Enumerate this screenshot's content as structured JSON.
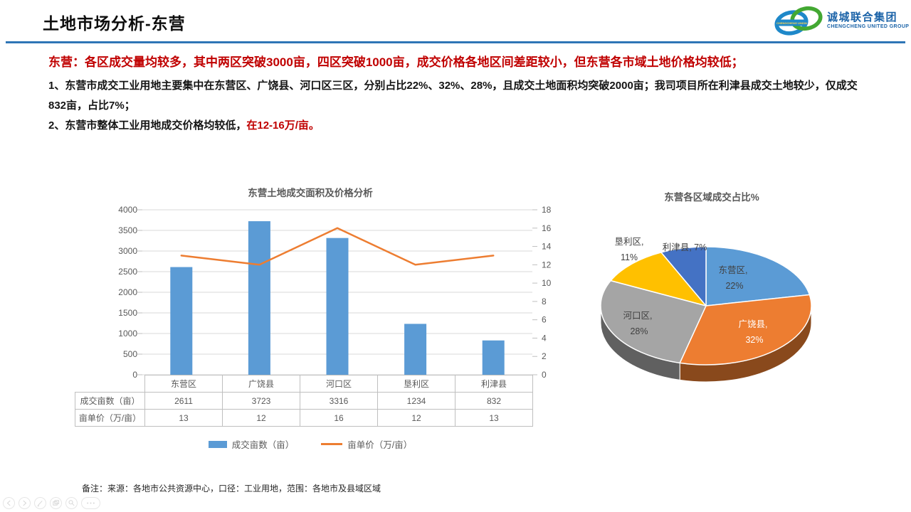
{
  "header": {
    "title": "土地市场分析-东营",
    "rule_color": "#2E75B6",
    "logo": {
      "cn": "诚城联合集团",
      "en": "CHENGCHENG UNITED GROUP",
      "badge": "CHENGCHENG UNION"
    }
  },
  "summary": {
    "headline": "东营：各区成交量均较多，其中两区突破3000亩，四区突破1000亩，成交价格各地区间差距较小，但东营各市域土地价格均较低；",
    "point1": "1、东营市成交工业用地主要集中在东营区、广饶县、河口区三区，分别占比22%、32%、28%，且成交土地面积均突破2000亩；我司项目所在利津县成交土地较少，仅成交832亩，占比7%；",
    "point2_text": "2、东营市整体工业用地成交价格均较低，",
    "point2_highlight": "在12-16万/亩。"
  },
  "chart_data": [
    {
      "type": "bar+line",
      "title": "东营土地成交面积及价格分析",
      "categories": [
        "东营区",
        "广饶县",
        "河口区",
        "垦利区",
        "利津县"
      ],
      "series": [
        {
          "name": "成交亩数（亩）",
          "type": "bar",
          "axis": "left",
          "color": "#5B9BD5",
          "values": [
            2611,
            3723,
            3316,
            1234,
            832
          ]
        },
        {
          "name": "亩单价（万/亩）",
          "type": "line",
          "axis": "right",
          "color": "#ED7D31",
          "values": [
            13,
            12,
            16,
            12,
            13
          ]
        }
      ],
      "left_axis": {
        "min": 0,
        "max": 4000,
        "step": 500
      },
      "right_axis": {
        "min": 0,
        "max": 18,
        "step": 2
      },
      "grid": true,
      "legend_position": "bottom"
    },
    {
      "type": "pie",
      "style": "3d",
      "title": "东营各区域成交占比%",
      "labels": [
        "东营区",
        "广饶县",
        "河口区",
        "垦利区",
        "利津县"
      ],
      "values": [
        22,
        32,
        28,
        11,
        7
      ],
      "colors": [
        "#5B9BD5",
        "#ED7D31",
        "#A5A5A5",
        "#FFC000",
        "#4472C4"
      ],
      "label_format": "name, value%"
    }
  ],
  "table": {
    "row_headers": [
      "成交亩数（亩）",
      "亩单价（万/亩）"
    ],
    "columns": [
      "东营区",
      "广饶县",
      "河口区",
      "垦利区",
      "利津县"
    ],
    "rows": [
      [
        "2611",
        "3723",
        "3316",
        "1234",
        "832"
      ],
      [
        "13",
        "12",
        "16",
        "12",
        "13"
      ]
    ]
  },
  "footnote": "备注：来源：各地市公共资源中心，口径：工业用地，范围：各地市及县域区域",
  "toolbar": {
    "icons": [
      "previous-slide",
      "next-slide",
      "pen",
      "slide-panel",
      "zoom",
      "more"
    ]
  }
}
